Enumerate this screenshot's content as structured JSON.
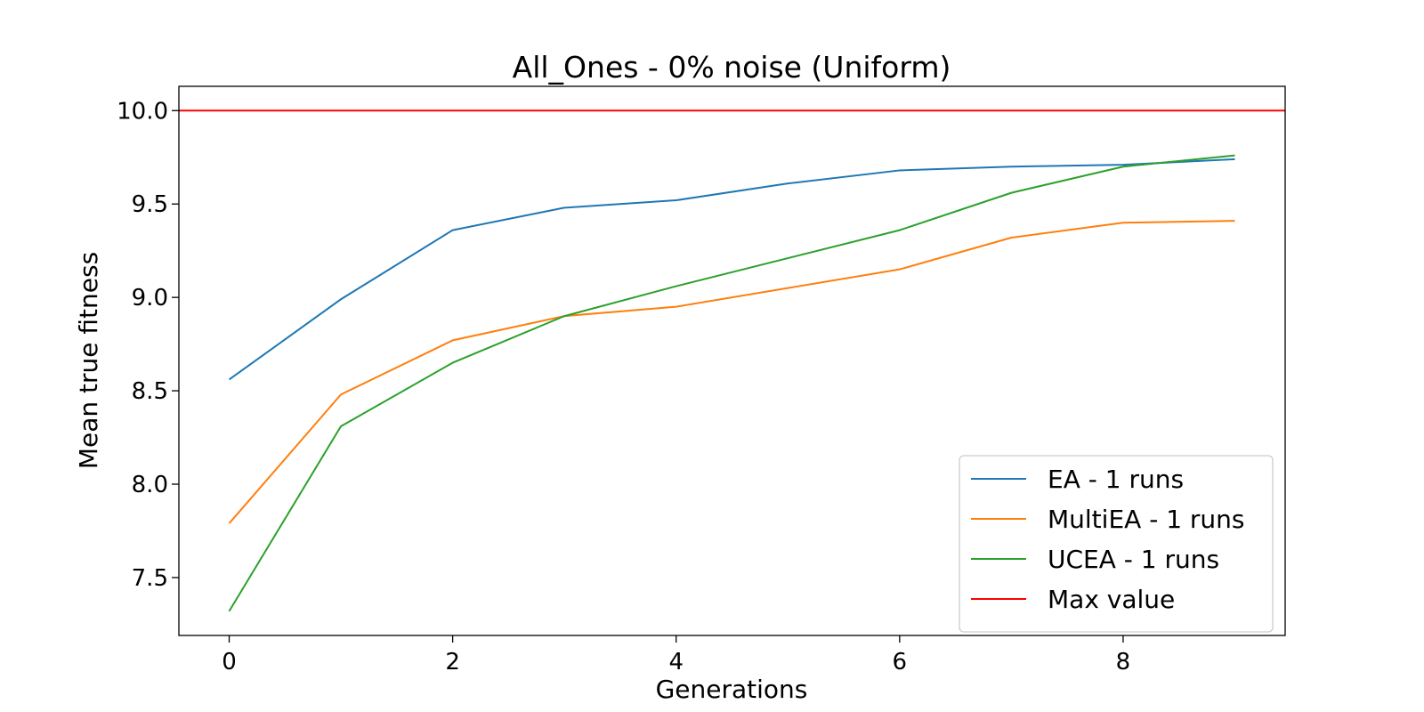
{
  "chart_data": {
    "type": "line",
    "title": "All_Ones - 0% noise (Uniform)",
    "xlabel": "Generations",
    "ylabel": "Mean true fitness",
    "xlim": [
      -0.45,
      9.45
    ],
    "ylim": [
      7.19,
      10.13
    ],
    "x_ticks": [
      0,
      2,
      4,
      6,
      8
    ],
    "x_tick_labels": [
      "0",
      "2",
      "4",
      "6",
      "8"
    ],
    "y_ticks": [
      7.5,
      8.0,
      8.5,
      9.0,
      9.5,
      10.0
    ],
    "y_tick_labels": [
      "7.5",
      "8.0",
      "8.5",
      "9.0",
      "9.5",
      "10.0"
    ],
    "grid": false,
    "legend_position": "lower-right",
    "x": [
      0,
      1,
      2,
      3,
      4,
      5,
      6,
      7,
      8,
      9
    ],
    "series": [
      {
        "name": "EA - 1 runs",
        "color": "#1f77b4",
        "values": [
          8.56,
          8.99,
          9.36,
          9.48,
          9.52,
          9.61,
          9.68,
          9.7,
          9.71,
          9.74
        ]
      },
      {
        "name": "MultiEA - 1 runs",
        "color": "#ff7f0e",
        "values": [
          7.79,
          8.48,
          8.77,
          8.9,
          8.95,
          9.05,
          9.15,
          9.32,
          9.4,
          9.41
        ]
      },
      {
        "name": "UCEA - 1 runs",
        "color": "#2ca02c",
        "values": [
          7.32,
          8.31,
          8.65,
          8.9,
          9.06,
          9.21,
          9.36,
          9.56,
          9.7,
          9.76
        ]
      }
    ],
    "reference_lines": [
      {
        "name": "Max value",
        "color": "#ff0000",
        "y": 10.0
      }
    ]
  }
}
